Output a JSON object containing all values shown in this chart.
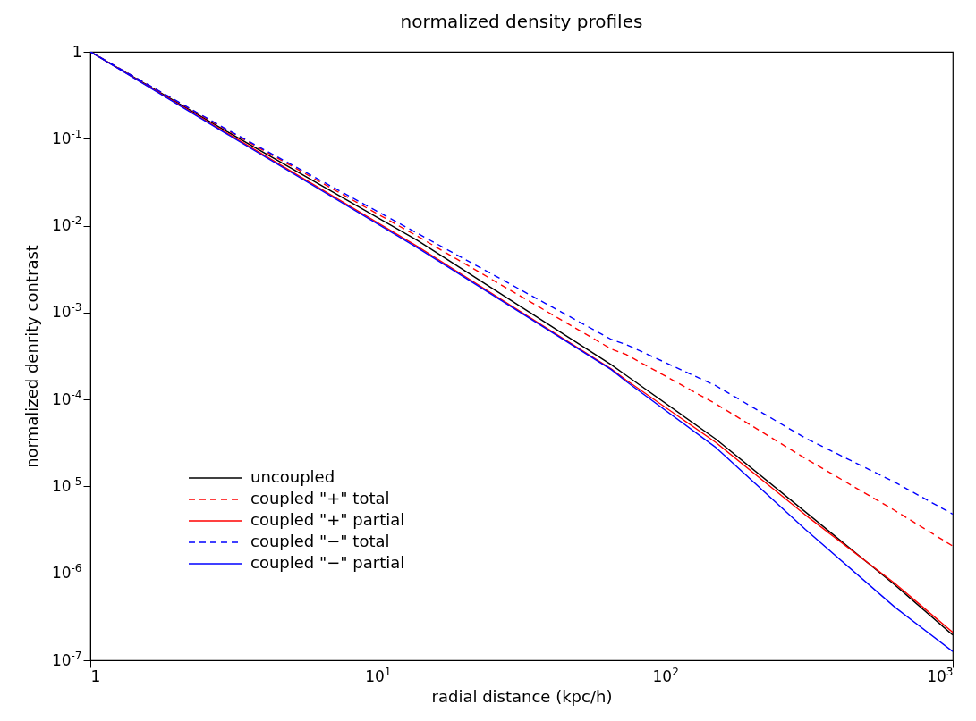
{
  "chart_data": {
    "type": "line",
    "title": "normalized density profiles",
    "xlabel": "radial distance (kpc/h)",
    "ylabel": "normalized denrity contrast",
    "log": "xy",
    "xlim": [
      1,
      1000
    ],
    "ylim": [
      1e-07,
      1
    ],
    "xticks": [
      1,
      {
        "value": 10,
        "label": "10$^{1}$"
      },
      {
        "value": 100,
        "label": "10$^{2}$"
      },
      {
        "value": 1000,
        "label": "10$^{3}$"
      }
    ],
    "yticks": [
      {
        "value": 1e-07,
        "label": "10$^{-7}$"
      },
      {
        "value": 1e-06,
        "label": "10$^{-6}$"
      },
      {
        "value": 1e-05,
        "label": "10$^{-5}$"
      },
      {
        "value": 0.0001,
        "label": "10$^{-4}$"
      },
      {
        "value": 0.001,
        "label": "10$^{-3}$"
      },
      {
        "value": 0.01,
        "label": "10$^{-2}$"
      },
      {
        "value": 0.1,
        "label": "10$^{-1}$"
      },
      1
    ],
    "x": [
      1,
      2.9,
      13.7,
      65,
      73,
      150,
      307,
      628,
      1000
    ],
    "grid": false,
    "legend": "bottom left",
    "marker": "none",
    "series": [
      {
        "name": "uncoupled",
        "color": "#000000",
        "line_style": "solid",
        "values": [
          1,
          0.128,
          0.0068,
          0.00025,
          0.00019,
          3.5e-05,
          5.1e-06,
          7.4e-07,
          1.95e-07
        ]
      },
      {
        "name": "coupled \"+\" total",
        "color": "#ff0000",
        "line_style": "dashed",
        "values": [
          1,
          0.133,
          0.0076,
          0.00038,
          0.00033,
          8.9e-05,
          2.1e-05,
          5.3e-06,
          2.06e-06
        ]
      },
      {
        "name": "coupled \"+\" partial",
        "color": "#ff0000",
        "line_style": "solid",
        "values": [
          1,
          0.123,
          0.0058,
          0.000224,
          0.000168,
          3.2e-05,
          4.7e-06,
          7.7e-07,
          2.1e-07
        ]
      },
      {
        "name": "coupled \"−\" total",
        "color": "#0000ff",
        "line_style": "dashed",
        "values": [
          1,
          0.135,
          0.0082,
          0.00049,
          0.00043,
          0.000144,
          3.6e-05,
          1.12e-05,
          4.8e-06
        ]
      },
      {
        "name": "coupled \"−\" partial",
        "color": "#0000ff",
        "line_style": "solid",
        "values": [
          1,
          0.12,
          0.0056,
          0.00022,
          0.000162,
          2.8e-05,
          3.2e-06,
          4.1e-07,
          1.26e-07
        ]
      }
    ]
  }
}
